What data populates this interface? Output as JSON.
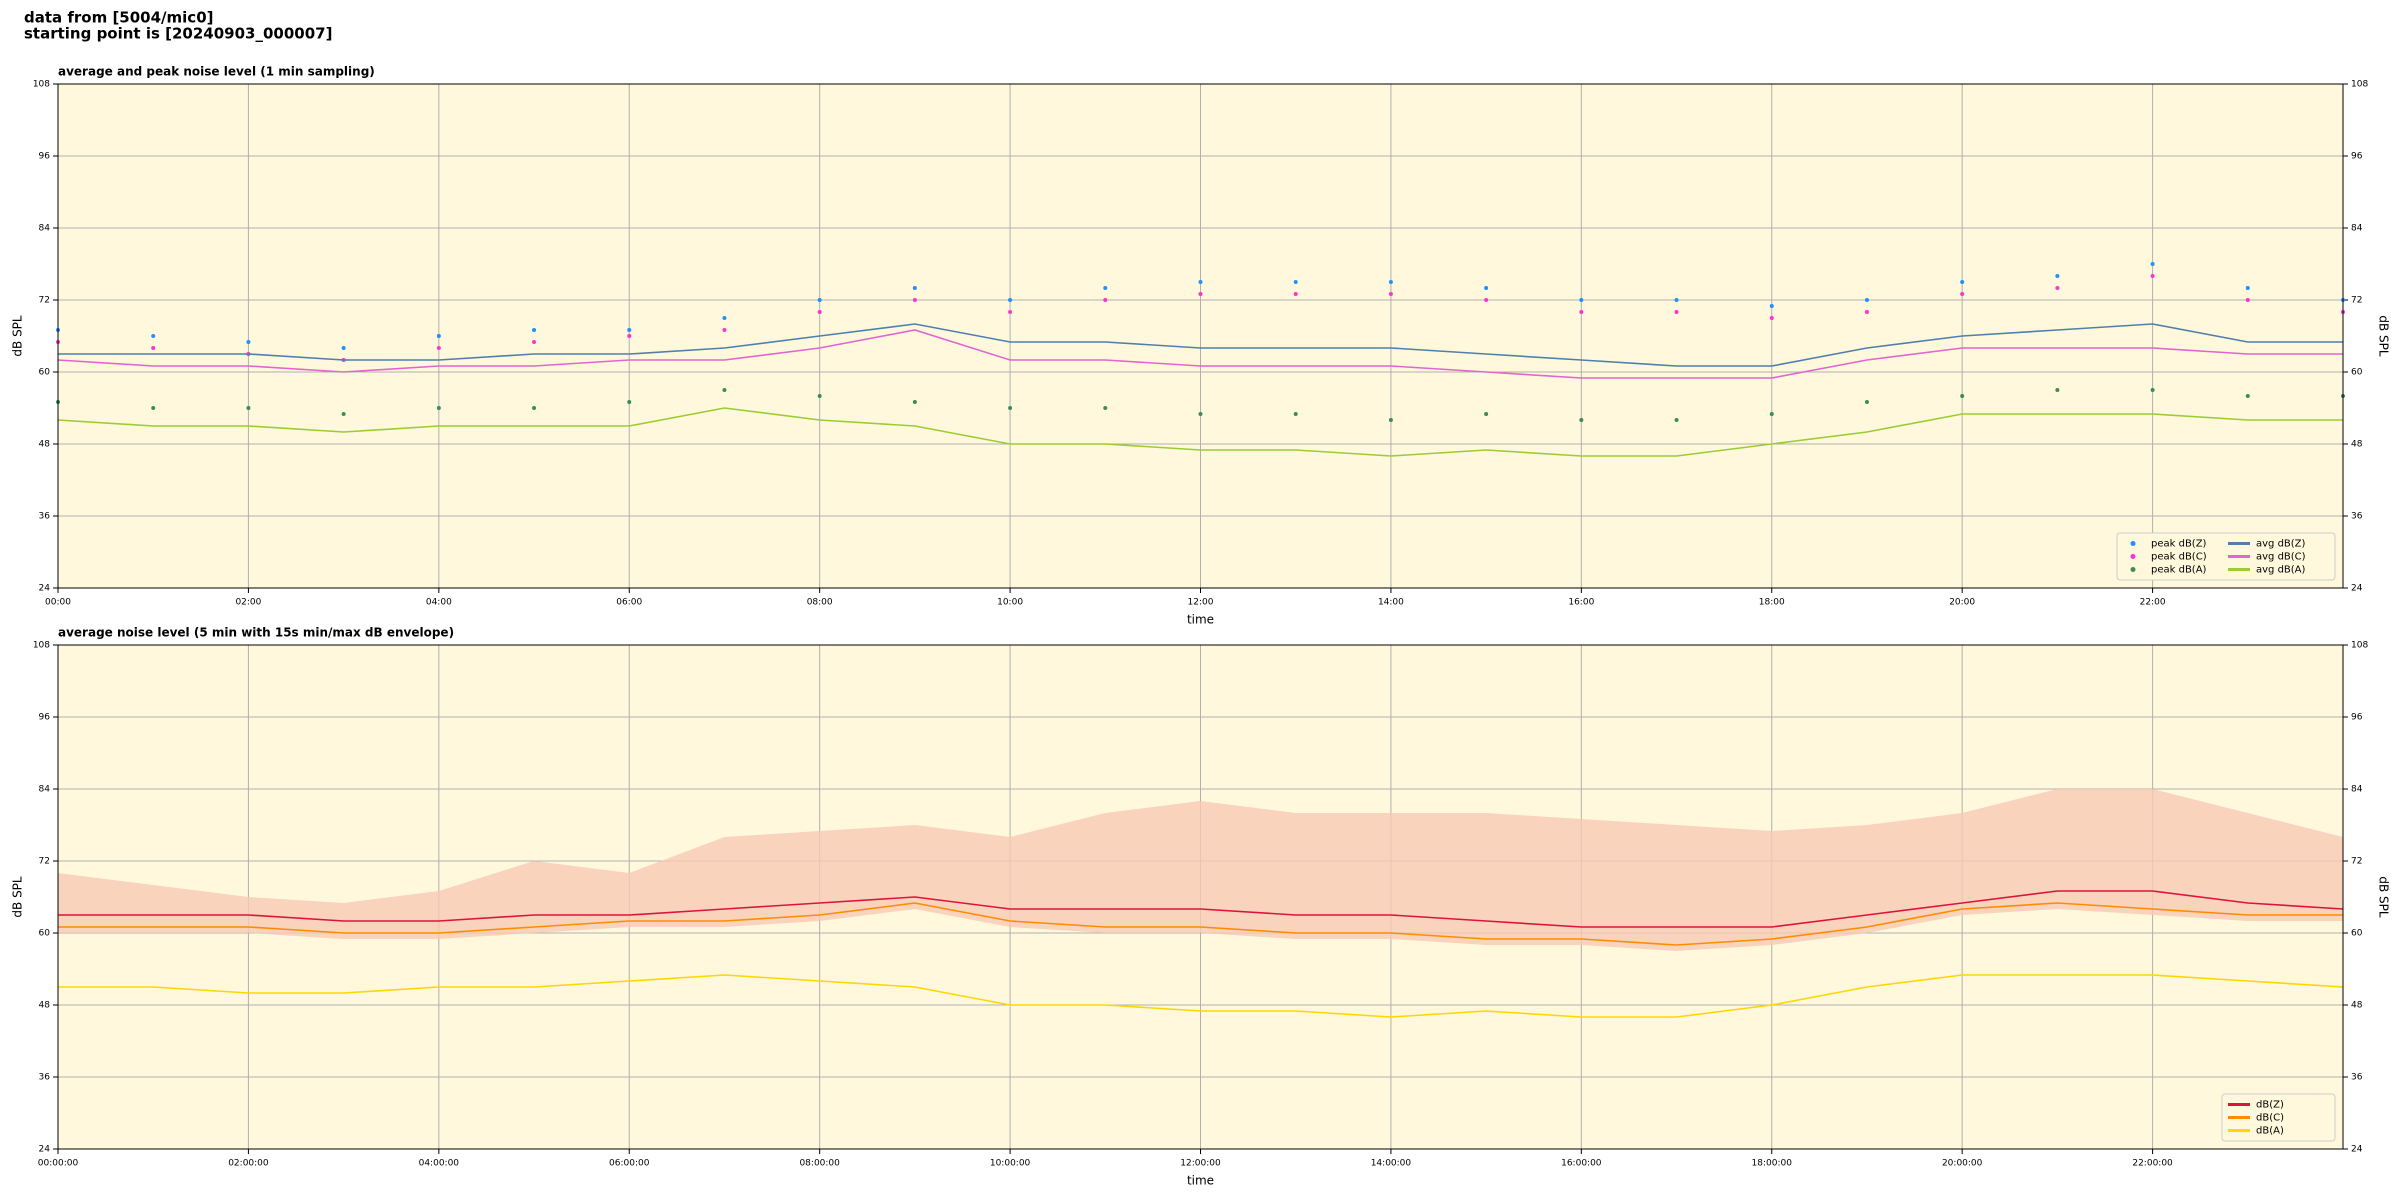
{
  "heading": [
    "data from [5004/mic0]",
    "starting point is [20240903_000007]"
  ],
  "chart_data": [
    {
      "type": "line",
      "title": "average and peak noise level (1 min sampling)",
      "xlabel": "time",
      "ylabel": "dB SPL",
      "background": "#fff8dc",
      "grid": true,
      "legend": "lower right",
      "legend_columns": 2,
      "x": [
        0,
        1,
        2,
        3,
        4,
        5,
        6,
        7,
        8,
        9,
        10,
        11,
        12,
        13,
        14,
        15,
        16,
        17,
        18,
        19,
        20,
        21,
        22,
        23,
        24
      ],
      "xlim": [
        0,
        24
      ],
      "xticks": [
        {
          "value": 0,
          "label": "00:00"
        },
        {
          "value": 2,
          "label": "02:00"
        },
        {
          "value": 4,
          "label": "04:00"
        },
        {
          "value": 6,
          "label": "06:00"
        },
        {
          "value": 8,
          "label": "08:00"
        },
        {
          "value": 10,
          "label": "10:00"
        },
        {
          "value": 12,
          "label": "12:00"
        },
        {
          "value": 14,
          "label": "14:00"
        },
        {
          "value": 16,
          "label": "16:00"
        },
        {
          "value": 18,
          "label": "18:00"
        },
        {
          "value": 20,
          "label": "20:00"
        },
        {
          "value": 22,
          "label": "22:00"
        }
      ],
      "ylim": [
        24,
        108
      ],
      "yticks": [
        24,
        36,
        48,
        60,
        72,
        84,
        96,
        108
      ],
      "series": [
        {
          "name": "peak dB(Z)",
          "style": "dots",
          "color": "#1e90ff",
          "values": [
            67,
            66,
            65,
            64,
            66,
            67,
            67,
            69,
            72,
            74,
            72,
            74,
            75,
            75,
            75,
            74,
            72,
            72,
            71,
            72,
            75,
            76,
            78,
            74,
            72
          ]
        },
        {
          "name": "peak dB(C)",
          "style": "dots",
          "color": "#ff33cc",
          "values": [
            65,
            64,
            63,
            62,
            64,
            65,
            66,
            67,
            70,
            72,
            70,
            72,
            73,
            73,
            73,
            72,
            70,
            70,
            69,
            70,
            73,
            74,
            76,
            72,
            70
          ]
        },
        {
          "name": "peak dB(A)",
          "style": "dots",
          "color": "#3c8c5a",
          "values": [
            55,
            54,
            54,
            53,
            54,
            54,
            55,
            57,
            56,
            55,
            54,
            54,
            53,
            53,
            52,
            53,
            52,
            52,
            53,
            55,
            56,
            57,
            57,
            56,
            56
          ]
        },
        {
          "name": "avg dB(Z)",
          "style": "line",
          "color": "#4f7fae",
          "values": [
            63,
            63,
            63,
            62,
            62,
            63,
            63,
            64,
            66,
            68,
            65,
            65,
            64,
            64,
            64,
            63,
            62,
            61,
            61,
            64,
            66,
            67,
            68,
            65,
            65
          ]
        },
        {
          "name": "avg dB(C)",
          "style": "line",
          "color": "#e066d0",
          "values": [
            62,
            61,
            61,
            60,
            61,
            61,
            62,
            62,
            64,
            67,
            62,
            62,
            61,
            61,
            61,
            60,
            59,
            59,
            59,
            62,
            64,
            64,
            64,
            63,
            63
          ]
        },
        {
          "name": "avg dB(A)",
          "style": "line",
          "color": "#9acd32",
          "values": [
            52,
            51,
            51,
            50,
            51,
            51,
            51,
            54,
            52,
            51,
            48,
            48,
            47,
            47,
            46,
            47,
            46,
            46,
            48,
            50,
            53,
            53,
            53,
            52,
            52
          ]
        }
      ]
    },
    {
      "type": "line",
      "title": "average noise level (5 min with 15s min/max dB envelope)",
      "xlabel": "time",
      "ylabel": "dB SPL",
      "background": "#fff8dc",
      "grid": true,
      "legend": "lower right",
      "legend_columns": 1,
      "x": [
        0,
        1,
        2,
        3,
        4,
        5,
        6,
        7,
        8,
        9,
        10,
        11,
        12,
        13,
        14,
        15,
        16,
        17,
        18,
        19,
        20,
        21,
        22,
        23,
        24
      ],
      "xlim": [
        0,
        24
      ],
      "xticks": [
        {
          "value": 0,
          "label": "00:00:00"
        },
        {
          "value": 2,
          "label": "02:00:00"
        },
        {
          "value": 4,
          "label": "04:00:00"
        },
        {
          "value": 6,
          "label": "06:00:00"
        },
        {
          "value": 8,
          "label": "08:00:00"
        },
        {
          "value": 10,
          "label": "10:00:00"
        },
        {
          "value": 12,
          "label": "12:00:00"
        },
        {
          "value": 14,
          "label": "14:00:00"
        },
        {
          "value": 16,
          "label": "16:00:00"
        },
        {
          "value": 18,
          "label": "18:00:00"
        },
        {
          "value": 20,
          "label": "20:00:00"
        },
        {
          "value": 22,
          "label": "22:00:00"
        }
      ],
      "ylim": [
        24,
        108
      ],
      "yticks": [
        24,
        36,
        48,
        60,
        72,
        84,
        96,
        108
      ],
      "envelope": {
        "color": "#f7c9b4",
        "high": [
          70,
          68,
          66,
          65,
          67,
          72,
          70,
          76,
          77,
          78,
          76,
          80,
          82,
          80,
          80,
          80,
          79,
          78,
          77,
          78,
          80,
          84,
          84,
          80,
          76
        ],
        "low": [
          60,
          60,
          60,
          59,
          59,
          60,
          61,
          61,
          62,
          64,
          61,
          60,
          60,
          59,
          59,
          58,
          58,
          57,
          58,
          60,
          63,
          64,
          63,
          62,
          62
        ]
      },
      "series": [
        {
          "name": "dB(Z)",
          "style": "line",
          "color": "#dc143c",
          "values": [
            63,
            63,
            63,
            62,
            62,
            63,
            63,
            64,
            65,
            66,
            64,
            64,
            64,
            63,
            63,
            62,
            61,
            61,
            61,
            63,
            65,
            67,
            67,
            65,
            64
          ]
        },
        {
          "name": "dB(C)",
          "style": "line",
          "color": "#ff8c00",
          "values": [
            61,
            61,
            61,
            60,
            60,
            61,
            62,
            62,
            63,
            65,
            62,
            61,
            61,
            60,
            60,
            59,
            59,
            58,
            59,
            61,
            64,
            65,
            64,
            63,
            63
          ]
        },
        {
          "name": "dB(A)",
          "style": "line",
          "color": "#ffd700",
          "values": [
            51,
            51,
            50,
            50,
            51,
            51,
            52,
            53,
            52,
            51,
            48,
            48,
            47,
            47,
            46,
            47,
            46,
            46,
            48,
            51,
            53,
            53,
            53,
            52,
            51
          ]
        }
      ]
    }
  ]
}
